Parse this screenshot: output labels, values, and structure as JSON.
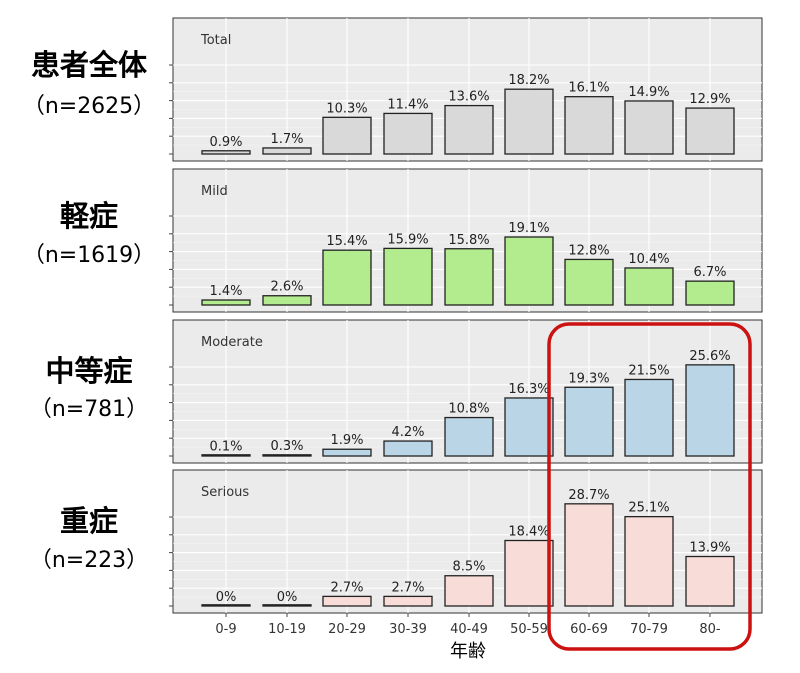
{
  "row_labels": [
    {
      "title": "患者全体",
      "n": "（n=2625）"
    },
    {
      "title": "軽症",
      "n": "（n=1619）"
    },
    {
      "title": "中等症",
      "n": "（n=781）"
    },
    {
      "title": "重症",
      "n": "（n=223）"
    }
  ],
  "chart_data": {
    "type": "bar",
    "xlabel": "年齢",
    "categories": [
      "0-9",
      "10-19",
      "20-29",
      "30-39",
      "40-49",
      "50-59",
      "60-69",
      "70-79",
      "80-"
    ],
    "ylim": [
      0,
      30
    ],
    "panels": [
      {
        "name": "Total",
        "color": "#d9d9d9",
        "values": [
          0.9,
          1.7,
          10.3,
          11.4,
          13.6,
          18.2,
          16.1,
          14.9,
          12.9
        ],
        "labels": [
          "0.9%",
          "1.7%",
          "10.3%",
          "11.4%",
          "13.6%",
          "18.2%",
          "16.1%",
          "14.9%",
          "12.9%"
        ]
      },
      {
        "name": "Mild",
        "color": "#b3ec8f",
        "values": [
          1.4,
          2.6,
          15.4,
          15.9,
          15.8,
          19.1,
          12.8,
          10.4,
          6.7
        ],
        "labels": [
          "1.4%",
          "2.6%",
          "15.4%",
          "15.9%",
          "15.8%",
          "19.1%",
          "12.8%",
          "10.4%",
          "6.7%"
        ]
      },
      {
        "name": "Moderate",
        "color": "#bad6e6",
        "values": [
          0.1,
          0.3,
          1.9,
          4.2,
          10.8,
          16.3,
          19.3,
          21.5,
          25.6
        ],
        "labels": [
          "0.1%",
          "0.3%",
          "1.9%",
          "4.2%",
          "10.8%",
          "16.3%",
          "19.3%",
          "21.5%",
          "25.6%"
        ]
      },
      {
        "name": "Serious",
        "color": "#f8dcd8",
        "values": [
          0,
          0,
          2.7,
          2.7,
          8.5,
          18.4,
          28.7,
          25.1,
          13.9
        ],
        "labels": [
          "0%",
          "0%",
          "2.7%",
          "2.7%",
          "8.5%",
          "18.4%",
          "28.7%",
          "25.1%",
          "13.9%"
        ]
      }
    ],
    "highlight": {
      "categories": [
        "60-69",
        "70-79",
        "80-"
      ],
      "color": "#cc1111"
    }
  }
}
